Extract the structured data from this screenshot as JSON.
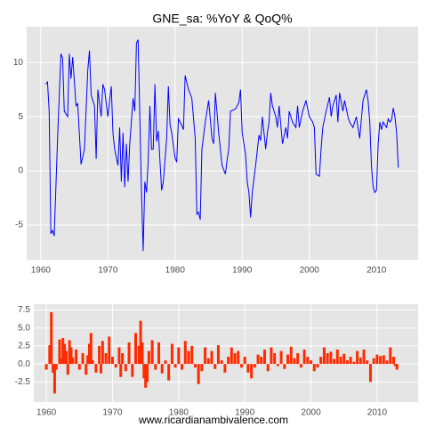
{
  "chart_data": [
    {
      "type": "line",
      "title": "GNE_sa: %YoY & QoQ%",
      "color": "#0000ff",
      "grid": true,
      "xlim": [
        1957.9,
        2016.2
      ],
      "xticks": [
        1960,
        1970,
        1980,
        1990,
        2000,
        2010
      ],
      "ylim": [
        -8.2,
        13.3
      ],
      "yticks": [
        -5,
        0,
        5,
        10
      ],
      "x": [
        1960.75,
        1961,
        1961.25,
        1961.5,
        1961.75,
        1962,
        1962.5,
        1963,
        1963.25,
        1963.5,
        1964,
        1964.25,
        1964.5,
        1964.75,
        1965.25,
        1965.5,
        1966,
        1966.5,
        1967,
        1967.25,
        1967.5,
        1968,
        1968.25,
        1968.5,
        1969,
        1969.25,
        1969.5,
        1970,
        1970.25,
        1970.5,
        1970.75,
        1971,
        1971.5,
        1971.75,
        1972,
        1972.25,
        1972.5,
        1972.75,
        1973,
        1973.25,
        1973.75,
        1974,
        1974.25,
        1974.5,
        1974.75,
        1975,
        1975.25,
        1975.5,
        1975.75,
        1976,
        1976.25,
        1976.5,
        1976.75,
        1977,
        1977.25,
        1977.5,
        1978,
        1978.25,
        1978.75,
        1979,
        1979.25,
        1979.5,
        1980,
        1980.25,
        1980.5,
        1981,
        1981.25,
        1981.5,
        1982,
        1982.5,
        1983,
        1983.25,
        1983.5,
        1983.75,
        1984,
        1984.5,
        1985,
        1985.5,
        1985.75,
        1986,
        1986.5,
        1987,
        1987.5,
        1987.75,
        1988,
        1988.25,
        1989,
        1989.5,
        1989.75,
        1990,
        1990.5,
        1990.75,
        1991,
        1991.25,
        1991.5,
        1992,
        1992.5,
        1992.75,
        1993,
        1993.5,
        1993.75,
        1994,
        1994.25,
        1994.5,
        1995,
        1995.25,
        1995.5,
        1996,
        1996.5,
        1996.75,
        1997,
        1997.5,
        1998,
        1998.25,
        1998.5,
        1999,
        1999.5,
        2000,
        2000.5,
        2000.75,
        2001,
        2001.5,
        2001.75,
        2002,
        2002.5,
        2003,
        2003.25,
        2003.5,
        2004,
        2004.25,
        2004.5,
        2005,
        2005.25,
        2005.75,
        2006,
        2006.5,
        2007,
        2007.5,
        2008,
        2008.5,
        2008.75,
        2009,
        2009.25,
        2009.5,
        2009.75,
        2010,
        2010.25,
        2010.5,
        2010.75,
        2011,
        2011.5,
        2011.75,
        2012,
        2012.25,
        2012.5,
        2012.75,
        2013,
        2013.25
      ],
      "values": [
        8.0,
        8.2,
        5.5,
        -5.8,
        -5.5,
        -6,
        3,
        10.8,
        10.4,
        5.5,
        5,
        10.8,
        8.5,
        10.5,
        6,
        6.2,
        0.6,
        2,
        9.3,
        11.1,
        7,
        6,
        1.1,
        7.5,
        5,
        8,
        7.5,
        5,
        6.5,
        7.8,
        3.5,
        2,
        0.5,
        4,
        -1,
        3.5,
        -1.5,
        2.5,
        -1,
        2.5,
        6.7,
        5.5,
        11.8,
        12.1,
        5,
        -2,
        -7.4,
        -1,
        -2,
        1,
        6,
        2,
        2,
        8,
        2.7,
        3.7,
        -1.8,
        -1,
        3,
        7.8,
        4.3,
        3.5,
        1.2,
        0.8,
        4.8,
        4.2,
        3.8,
        8.8,
        7.5,
        6.7,
        3,
        -4,
        -3.8,
        -4.5,
        2,
        4.5,
        6.5,
        3,
        2.5,
        7.2,
        3.5,
        0.5,
        -0.3,
        1,
        2,
        5.5,
        5.7,
        6.3,
        7.5,
        3.5,
        1.5,
        -1,
        -2,
        -4.3,
        -2,
        0.5,
        3.3,
        2.8,
        5,
        2,
        3.5,
        4.5,
        7.2,
        6,
        5,
        4,
        6,
        2.5,
        4,
        3,
        5.5,
        4.5,
        4,
        6,
        4,
        5.5,
        6.5,
        5,
        4.5,
        4,
        -0.3,
        -0.5,
        2,
        4,
        5.5,
        6.8,
        5,
        6,
        7,
        4.5,
        7.2,
        5.5,
        6.5,
        5,
        4.5,
        4,
        5,
        3,
        6.5,
        7.5,
        6.5,
        4.5,
        0.5,
        -1.5,
        -2,
        -1.8,
        2.5,
        4.5,
        3.8,
        4.5,
        4,
        4.8,
        4.5,
        4.7,
        5.8,
        5,
        3.5,
        0.3
      ]
    },
    {
      "type": "bar",
      "color": "#ff2a00",
      "grid": true,
      "xlim": [
        1958.1,
        2016.2
      ],
      "xticks": [
        1960,
        1970,
        1980,
        1990,
        2000,
        2010
      ],
      "ylim": [
        -5.3,
        8.3
      ],
      "yticks": [
        -2.5,
        {
          "value": 0,
          "label": "0.0"
        },
        2.5,
        {
          "value": 5,
          "label": "5.0"
        },
        7.5
      ],
      "x": [
        1960,
        1960.5,
        1960.75,
        1961,
        1961.25,
        1961.5,
        1962,
        1962.25,
        1962.5,
        1962.75,
        1963,
        1963.25,
        1963.5,
        1963.75,
        1964,
        1964.5,
        1965,
        1965.5,
        1966,
        1966.25,
        1966.5,
        1966.75,
        1967,
        1967.5,
        1968,
        1968.25,
        1968.5,
        1969,
        1969.5,
        1970,
        1970.5,
        1971,
        1971.25,
        1971.5,
        1972,
        1972.5,
        1973,
        1973.5,
        1974,
        1974.25,
        1974.5,
        1974.75,
        1975,
        1975.25,
        1975.5,
        1976,
        1976.5,
        1977,
        1977.5,
        1978,
        1978.5,
        1979,
        1979.5,
        1980,
        1980.5,
        1981,
        1981.5,
        1982,
        1982.5,
        1983,
        1983.5,
        1984,
        1984.5,
        1985,
        1985.5,
        1986,
        1986.5,
        1987,
        1987.5,
        1988,
        1988.5,
        1989,
        1989.5,
        1990,
        1990.5,
        1991,
        1991.5,
        1992,
        1992.5,
        1993,
        1993.5,
        1994,
        1994.5,
        1995,
        1995.5,
        1996,
        1996.5,
        1997,
        1997.5,
        1998,
        1998.5,
        1999,
        1999.5,
        2000,
        2000.5,
        2001,
        2001.5,
        2002,
        2002.5,
        2003,
        2003.5,
        2004,
        2004.5,
        2005,
        2005.5,
        2006,
        2006.5,
        2007,
        2007.5,
        2008,
        2008.5,
        2009,
        2009.5,
        2010,
        2010.5,
        2011,
        2011.5,
        2012,
        2012.5,
        2012.75,
        2013
      ],
      "values": [
        -0.8,
        2.6,
        7.2,
        -1.2,
        -4.1,
        -0.8,
        3.4,
        0.8,
        3.6,
        2.8,
        1.8,
        -1.5,
        3.3,
        2.3,
        0.9,
        2,
        -0.8,
        1.5,
        -1.5,
        1.2,
        2.8,
        4.3,
        0.5,
        -1.2,
        2.5,
        -1.3,
        3.2,
        1.5,
        3.8,
        1,
        -0.5,
        2.3,
        -1.8,
        1.5,
        -1,
        3,
        -1.8,
        4.3,
        2.5,
        6,
        3,
        -2,
        -3.3,
        -2.5,
        1.8,
        3.3,
        -0.8,
        3,
        -1.3,
        0.5,
        -2.3,
        2.8,
        -0.5,
        2.3,
        -0.8,
        3.2,
        1.8,
        2.5,
        -0.5,
        -2.8,
        -1,
        2.3,
        0.8,
        1.8,
        -0.7,
        2.6,
        0.5,
        -1.2,
        1,
        2.3,
        1.5,
        1.8,
        -0.5,
        1,
        -1.2,
        -2,
        -0.5,
        1.3,
        1,
        2,
        -1,
        2.3,
        1.5,
        -0.3,
        1.8,
        -0.7,
        1.3,
        2.4,
        0.8,
        1.5,
        -0.5,
        2,
        1,
        0.5,
        -1,
        -0.5,
        1,
        2.3,
        1.5,
        1.7,
        0.7,
        2,
        1,
        1.4,
        0.5,
        1,
        0.3,
        1.8,
        0.9,
        2,
        0.5,
        -2.5,
        0.8,
        1.3,
        1.1,
        1.2,
        0.5,
        2.3,
        1,
        -0.3,
        -0.8
      ]
    }
  ],
  "source": "www.ricardianambivalence.com"
}
